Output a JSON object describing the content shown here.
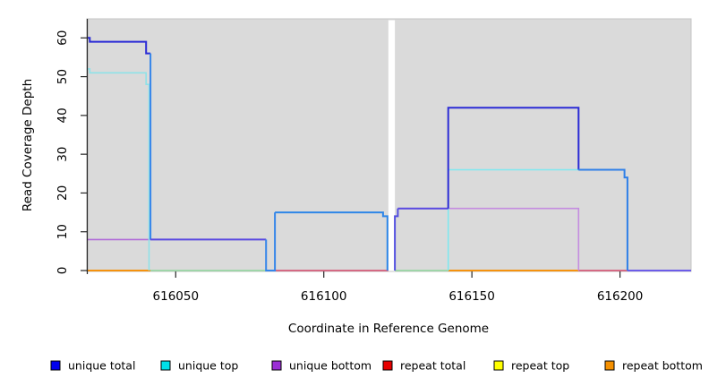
{
  "chart_data": {
    "type": "line",
    "subtype": "step-coverage-plot",
    "title": "",
    "xlabel": "Coordinate in Reference Genome",
    "ylabel": "Read Coverage Depth",
    "xlim": [
      616020,
      616224
    ],
    "ylim": [
      0,
      60
    ],
    "xticks": [
      "616050",
      "616100",
      "616150",
      "616200"
    ],
    "xtick_values": [
      616050,
      616100,
      616150,
      616200
    ],
    "yticks": [
      "0",
      "10",
      "20",
      "30",
      "40",
      "50",
      "60"
    ],
    "ytick_values": [
      0,
      10,
      20,
      30,
      40,
      50,
      60
    ],
    "grid": false,
    "panel_bg": "#DADADA",
    "panel_border": "#C4C4C4",
    "axis_color": "#262626",
    "gap_region": {
      "x1": 616121.8,
      "x2": 616124,
      "fill": "#FFFFFF"
    },
    "legend_position": "bottom",
    "legend": [
      {
        "label": "unique total",
        "color": "#0000EE"
      },
      {
        "label": "unique top",
        "color": "#00E0E8"
      },
      {
        "label": "unique bottom",
        "color": "#9B2FD6"
      },
      {
        "label": "repeat total",
        "color": "#E60000"
      },
      {
        "label": "repeat top",
        "color": "#FFFF00"
      },
      {
        "label": "repeat bottom",
        "color": "#F59000"
      }
    ],
    "series": [
      {
        "name": "unique total",
        "steps": [
          [
            616020,
            60
          ],
          [
            616021,
            59
          ],
          [
            616040,
            56
          ],
          [
            616041,
            8
          ],
          [
            616080,
            0
          ],
          [
            616084,
            15
          ],
          [
            616120,
            14
          ],
          [
            616122,
            0
          ],
          [
            616124,
            14
          ],
          [
            616125,
            16
          ],
          [
            616142,
            42
          ],
          [
            616186,
            26
          ],
          [
            616201,
            24
          ],
          [
            616203,
            0
          ],
          [
            616224,
            0
          ]
        ]
      },
      {
        "name": "unique top",
        "steps": [
          [
            616020,
            52
          ],
          [
            616021,
            51
          ],
          [
            616040,
            48
          ],
          [
            616041,
            0
          ],
          [
            616142,
            26
          ],
          [
            616201,
            0
          ],
          [
            616224,
            0
          ]
        ]
      },
      {
        "name": "unique bottom",
        "steps": [
          [
            616020,
            8
          ],
          [
            616041,
            0
          ],
          [
            616142,
            16
          ],
          [
            616186,
            0
          ],
          [
            616224,
            0
          ]
        ]
      },
      {
        "name": "repeat total",
        "steps": [
          [
            616020,
            0
          ],
          [
            616224,
            0
          ]
        ]
      },
      {
        "name": "repeat top",
        "steps": [
          [
            616020,
            0
          ],
          [
            616224,
            0
          ]
        ]
      },
      {
        "name": "repeat bottom",
        "steps": [
          [
            616020,
            0
          ],
          [
            616224,
            0
          ]
        ]
      }
    ],
    "draw_segments": [
      {
        "color": "#F5920E",
        "w": 2.0,
        "pts": [
          [
            616020,
            0
          ],
          [
            616041.5,
            0
          ]
        ]
      },
      {
        "color": "#8FD69B",
        "w": 1.6,
        "pts": [
          [
            616041.5,
            0
          ],
          [
            616080.5,
            0
          ]
        ]
      },
      {
        "color": "#D5486B",
        "w": 1.6,
        "pts": [
          [
            616083.5,
            0
          ],
          [
            616121.8,
            0
          ]
        ]
      },
      {
        "color": "#8FD69B",
        "w": 1.6,
        "pts": [
          [
            616124,
            0
          ],
          [
            616142,
            0
          ]
        ]
      },
      {
        "color": "#F5920E",
        "w": 2.0,
        "pts": [
          [
            616142,
            0
          ],
          [
            616186,
            0
          ]
        ]
      },
      {
        "color": "#D5486B",
        "w": 1.6,
        "pts": [
          [
            616186,
            0
          ],
          [
            616202.5,
            0
          ]
        ]
      },
      {
        "color": "#6C5CE8",
        "w": 2.0,
        "pts": [
          [
            616202.5,
            0
          ],
          [
            616224,
            0
          ]
        ]
      },
      {
        "color": "#B06AD8",
        "w": 1.6,
        "pts": [
          [
            616020,
            8
          ],
          [
            616041.5,
            8
          ]
        ]
      },
      {
        "color": "#C48CE0",
        "w": 1.6,
        "pts": [
          [
            616142,
            16
          ],
          [
            616186,
            16
          ],
          [
            616186,
            0
          ]
        ]
      },
      {
        "color": "#8FE2E8",
        "w": 1.6,
        "pts": [
          [
            616020,
            52
          ],
          [
            616021,
            52
          ],
          [
            616021,
            51
          ],
          [
            616040,
            51
          ],
          [
            616040,
            48
          ],
          [
            616041,
            48
          ],
          [
            616041,
            0
          ]
        ]
      },
      {
        "color": "#7FE8F0",
        "w": 1.6,
        "pts": [
          [
            616142,
            0
          ],
          [
            616142,
            26
          ],
          [
            616201.5,
            26
          ]
        ]
      },
      {
        "color": "#2B2BD5",
        "w": 2.0,
        "pts": [
          [
            616020,
            60
          ],
          [
            616021,
            60
          ],
          [
            616021,
            59
          ],
          [
            616040,
            59
          ],
          [
            616040,
            56
          ],
          [
            616041.5,
            56
          ]
        ]
      },
      {
        "color": "#3585EA",
        "w": 2.0,
        "pts": [
          [
            616041.5,
            56
          ],
          [
            616041.5,
            8
          ]
        ]
      },
      {
        "color": "#5948E0",
        "w": 2.0,
        "pts": [
          [
            616041.5,
            8
          ],
          [
            616080.5,
            8
          ]
        ]
      },
      {
        "color": "#3585EA",
        "w": 2.0,
        "pts": [
          [
            616080.5,
            8
          ],
          [
            616080.5,
            0
          ],
          [
            616083.5,
            0
          ],
          [
            616083.5,
            15
          ]
        ]
      },
      {
        "color": "#2E86E8",
        "w": 2.0,
        "pts": [
          [
            616083.5,
            15
          ],
          [
            616120,
            15
          ],
          [
            616120,
            14
          ],
          [
            616121.5,
            14
          ],
          [
            616121.5,
            0
          ]
        ]
      },
      {
        "color": "#5350E0",
        "w": 2.0,
        "pts": [
          [
            616124,
            0
          ],
          [
            616124,
            14
          ],
          [
            616125,
            14
          ],
          [
            616125,
            16
          ]
        ]
      },
      {
        "color": "#5948E0",
        "w": 2.0,
        "pts": [
          [
            616125,
            16
          ],
          [
            616142,
            16
          ]
        ]
      },
      {
        "color": "#2B2BD5",
        "w": 2.0,
        "pts": [
          [
            616142,
            16
          ],
          [
            616142,
            42
          ],
          [
            616186,
            42
          ],
          [
            616186,
            26
          ]
        ]
      },
      {
        "color": "#2E7FE8",
        "w": 2.0,
        "pts": [
          [
            616186,
            26
          ],
          [
            616201.5,
            26
          ],
          [
            616201.5,
            24
          ],
          [
            616202.5,
            24
          ],
          [
            616202.5,
            0
          ]
        ]
      }
    ]
  }
}
